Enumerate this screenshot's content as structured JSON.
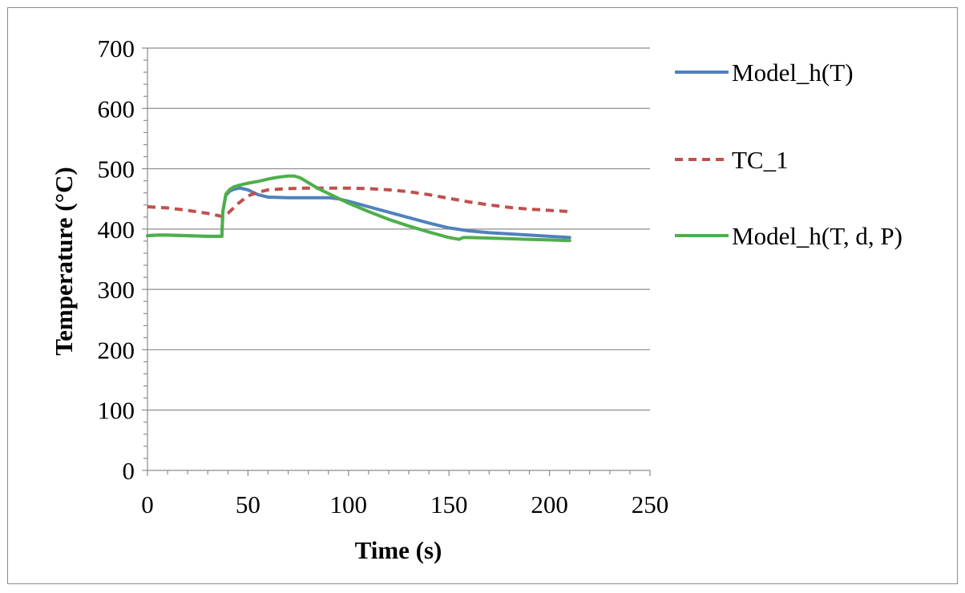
{
  "chart_data": {
    "type": "line",
    "title": "",
    "xlabel": "Time (s)",
    "ylabel": "Temperature (°C)",
    "xlim": [
      0,
      250
    ],
    "ylim": [
      0,
      700
    ],
    "x_ticks": [
      0,
      50,
      100,
      150,
      200,
      250
    ],
    "y_ticks": [
      0,
      100,
      200,
      300,
      400,
      500,
      600,
      700
    ],
    "grid": "horizontal",
    "legend_position": "right",
    "series": [
      {
        "name": "Model_h(T)",
        "color": "#4f81bd",
        "dash": "solid",
        "x": [
          0,
          5,
          10,
          20,
          30,
          37,
          37.5,
          39,
          41,
          43,
          46,
          50,
          55,
          60,
          70,
          80,
          90,
          95,
          100,
          110,
          120,
          130,
          140,
          150,
          160,
          170,
          180,
          190,
          200,
          210
        ],
        "y": [
          389,
          390,
          390,
          389,
          388,
          388,
          430,
          456,
          463,
          466,
          468,
          465,
          457,
          453,
          452,
          452,
          452,
          450,
          446,
          437,
          428,
          419,
          410,
          402,
          397,
          394,
          392,
          390,
          388,
          386
        ]
      },
      {
        "name": "TC_1",
        "color": "#c0504d",
        "dash": "dashed",
        "x": [
          0,
          10,
          20,
          30,
          37,
          40,
          45,
          50,
          55,
          60,
          70,
          80,
          90,
          100,
          110,
          120,
          130,
          140,
          150,
          160,
          170,
          180,
          190,
          200,
          210
        ],
        "y": [
          437,
          435,
          431,
          426,
          421,
          426,
          442,
          455,
          461,
          465,
          467,
          468,
          468,
          468,
          467,
          465,
          462,
          457,
          451,
          445,
          440,
          436,
          433,
          431,
          429
        ]
      },
      {
        "name": "Model_h(T, d, P)",
        "color": "#4faf4a",
        "dash": "solid",
        "x": [
          0,
          5,
          10,
          20,
          30,
          37,
          37.5,
          39,
          41,
          43,
          46,
          50,
          55,
          60,
          65,
          70,
          73,
          76,
          80,
          85,
          90,
          100,
          110,
          120,
          130,
          140,
          150,
          155,
          157,
          160,
          170,
          180,
          190,
          200,
          210
        ],
        "y": [
          389,
          390,
          390,
          389,
          388,
          388,
          430,
          458,
          466,
          470,
          473,
          476,
          479,
          483,
          486,
          488,
          488,
          485,
          477,
          467,
          459,
          443,
          429,
          416,
          405,
          395,
          386,
          383,
          386,
          386,
          385,
          384,
          383,
          382,
          381
        ]
      }
    ]
  }
}
